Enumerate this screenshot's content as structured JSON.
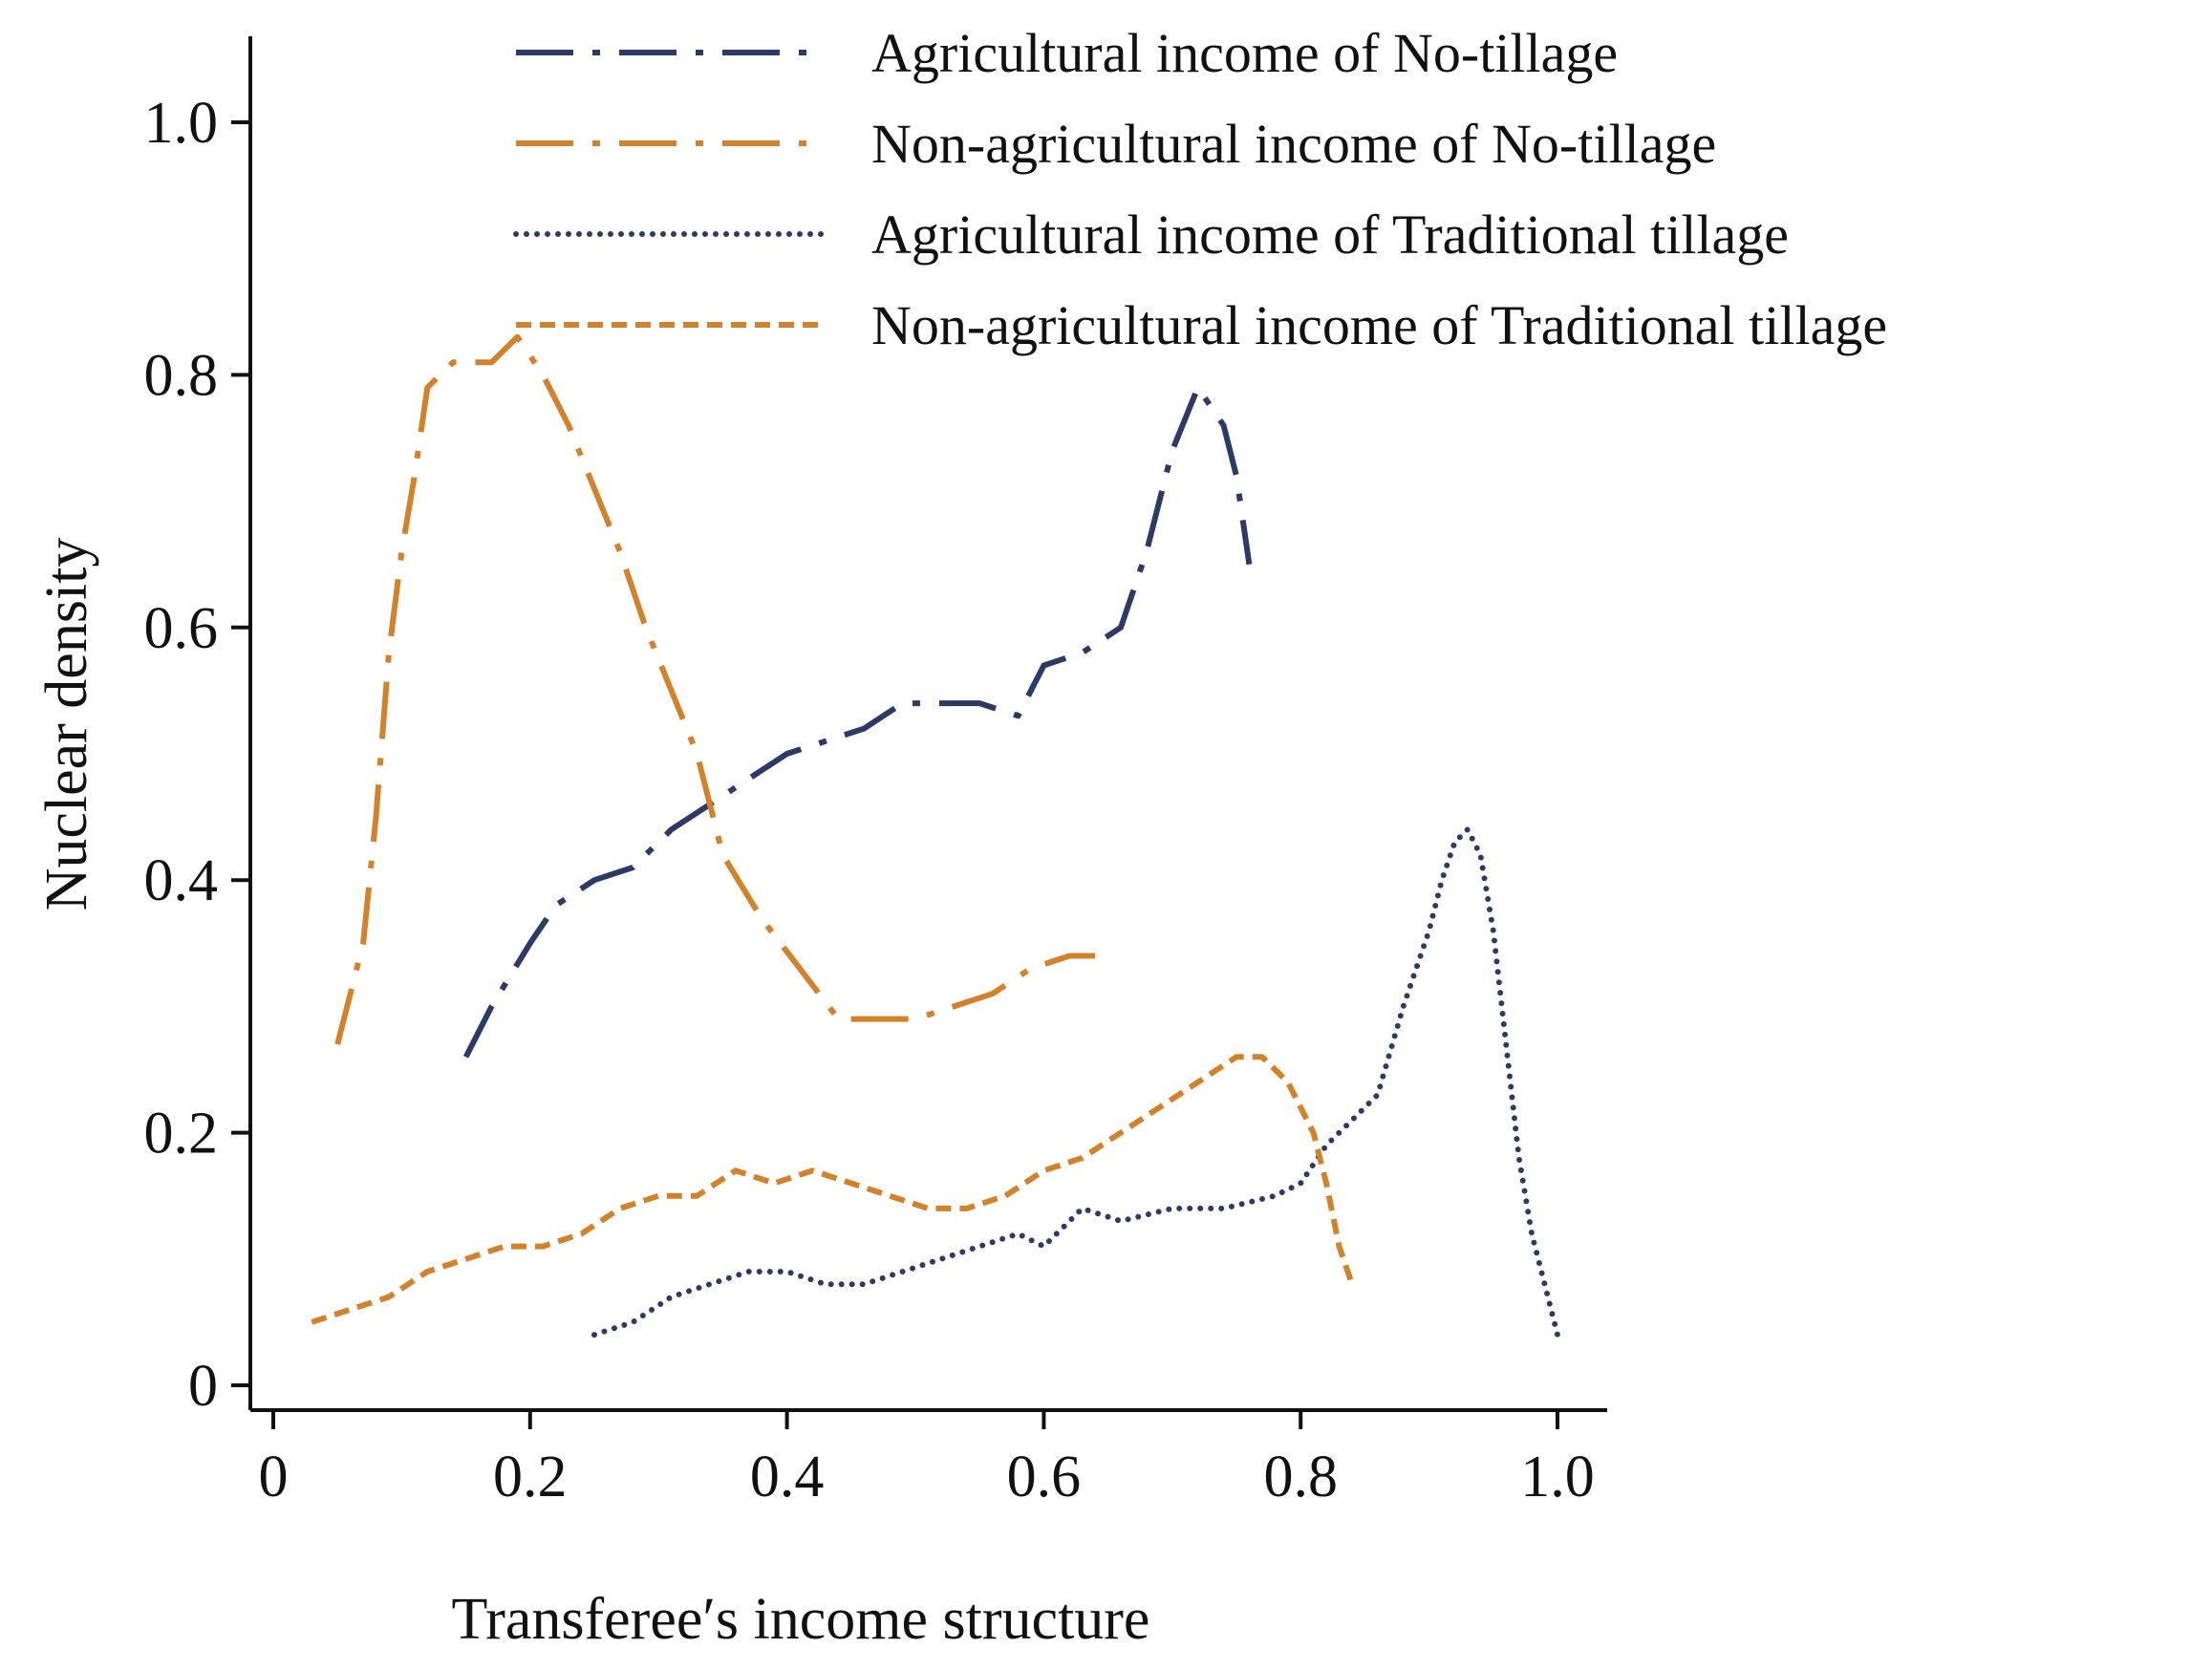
{
  "chart_data": {
    "type": "line",
    "xlabel": "Transferee′s income structure",
    "ylabel": "Nuclear density",
    "xlim": [
      0,
      1.0
    ],
    "ylim": [
      0,
      1.0
    ],
    "x_ticks": [
      {
        "value": 0,
        "label": "0"
      },
      {
        "value": 0.2,
        "label": "0.2"
      },
      {
        "value": 0.4,
        "label": "0.4"
      },
      {
        "value": 0.6,
        "label": "0.6"
      },
      {
        "value": 0.8,
        "label": "0.8"
      },
      {
        "value": 1.0,
        "label": "1.0"
      }
    ],
    "y_ticks": [
      {
        "value": 0,
        "label": "0"
      },
      {
        "value": 0.2,
        "label": "0.2"
      },
      {
        "value": 0.4,
        "label": "0.4"
      },
      {
        "value": 0.6,
        "label": "0.6"
      },
      {
        "value": 0.8,
        "label": "0.8"
      },
      {
        "value": 1.0,
        "label": "1.0"
      }
    ],
    "grid": false,
    "legend_position": "top-right",
    "series": [
      {
        "name": "Agricultural income of No-tillage",
        "color": "#2b3a67",
        "dash": "long-dash-dot",
        "x": [
          0.15,
          0.17,
          0.2,
          0.22,
          0.25,
          0.28,
          0.31,
          0.34,
          0.37,
          0.4,
          0.43,
          0.46,
          0.49,
          0.52,
          0.55,
          0.58,
          0.6,
          0.63,
          0.66,
          0.68,
          0.7,
          0.72,
          0.74,
          0.75,
          0.76
        ],
        "y": [
          0.26,
          0.3,
          0.35,
          0.38,
          0.4,
          0.41,
          0.44,
          0.46,
          0.48,
          0.5,
          0.51,
          0.52,
          0.54,
          0.54,
          0.54,
          0.53,
          0.57,
          0.58,
          0.6,
          0.66,
          0.74,
          0.79,
          0.76,
          0.72,
          0.65
        ]
      },
      {
        "name": "Non-agricultural income of No-tillage",
        "color": "#d4822a",
        "dash": "long-dash-dot",
        "x": [
          0.05,
          0.07,
          0.08,
          0.09,
          0.1,
          0.11,
          0.12,
          0.14,
          0.17,
          0.19,
          0.21,
          0.23,
          0.25,
          0.27,
          0.29,
          0.31,
          0.33,
          0.35,
          0.38,
          0.41,
          0.44,
          0.47,
          0.5,
          0.53,
          0.56,
          0.59,
          0.62,
          0.64
        ],
        "y": [
          0.27,
          0.35,
          0.45,
          0.58,
          0.66,
          0.72,
          0.79,
          0.81,
          0.81,
          0.83,
          0.8,
          0.76,
          0.71,
          0.66,
          0.6,
          0.55,
          0.5,
          0.42,
          0.37,
          0.33,
          0.29,
          0.29,
          0.29,
          0.3,
          0.31,
          0.33,
          0.34,
          0.34
        ]
      },
      {
        "name": "Agricultural income of Traditional tillage",
        "color": "#2b3a67",
        "dash": "dotted",
        "x": [
          0.25,
          0.28,
          0.31,
          0.34,
          0.37,
          0.4,
          0.43,
          0.46,
          0.49,
          0.52,
          0.55,
          0.58,
          0.6,
          0.63,
          0.66,
          0.7,
          0.74,
          0.78,
          0.8,
          0.82,
          0.84,
          0.86,
          0.88,
          0.9,
          0.91,
          0.92,
          0.93,
          0.94,
          0.95,
          0.96,
          0.97,
          0.98,
          0.99,
          1.0
        ],
        "y": [
          0.04,
          0.05,
          0.07,
          0.08,
          0.09,
          0.09,
          0.08,
          0.08,
          0.09,
          0.1,
          0.11,
          0.12,
          0.11,
          0.14,
          0.13,
          0.14,
          0.14,
          0.15,
          0.16,
          0.19,
          0.21,
          0.23,
          0.3,
          0.36,
          0.4,
          0.43,
          0.44,
          0.42,
          0.36,
          0.27,
          0.18,
          0.12,
          0.08,
          0.04
        ]
      },
      {
        "name": "Non-agricultural income of Traditional tillage",
        "color": "#d4822a",
        "dash": "short-dash",
        "x": [
          0.03,
          0.06,
          0.09,
          0.12,
          0.15,
          0.18,
          0.21,
          0.24,
          0.27,
          0.3,
          0.33,
          0.36,
          0.39,
          0.42,
          0.45,
          0.48,
          0.51,
          0.54,
          0.57,
          0.6,
          0.63,
          0.66,
          0.69,
          0.72,
          0.75,
          0.77,
          0.79,
          0.81,
          0.82,
          0.83,
          0.84
        ],
        "y": [
          0.05,
          0.06,
          0.07,
          0.09,
          0.1,
          0.11,
          0.11,
          0.12,
          0.14,
          0.15,
          0.15,
          0.17,
          0.16,
          0.17,
          0.16,
          0.15,
          0.14,
          0.14,
          0.15,
          0.17,
          0.18,
          0.2,
          0.22,
          0.24,
          0.26,
          0.26,
          0.24,
          0.2,
          0.16,
          0.11,
          0.08
        ]
      }
    ]
  }
}
